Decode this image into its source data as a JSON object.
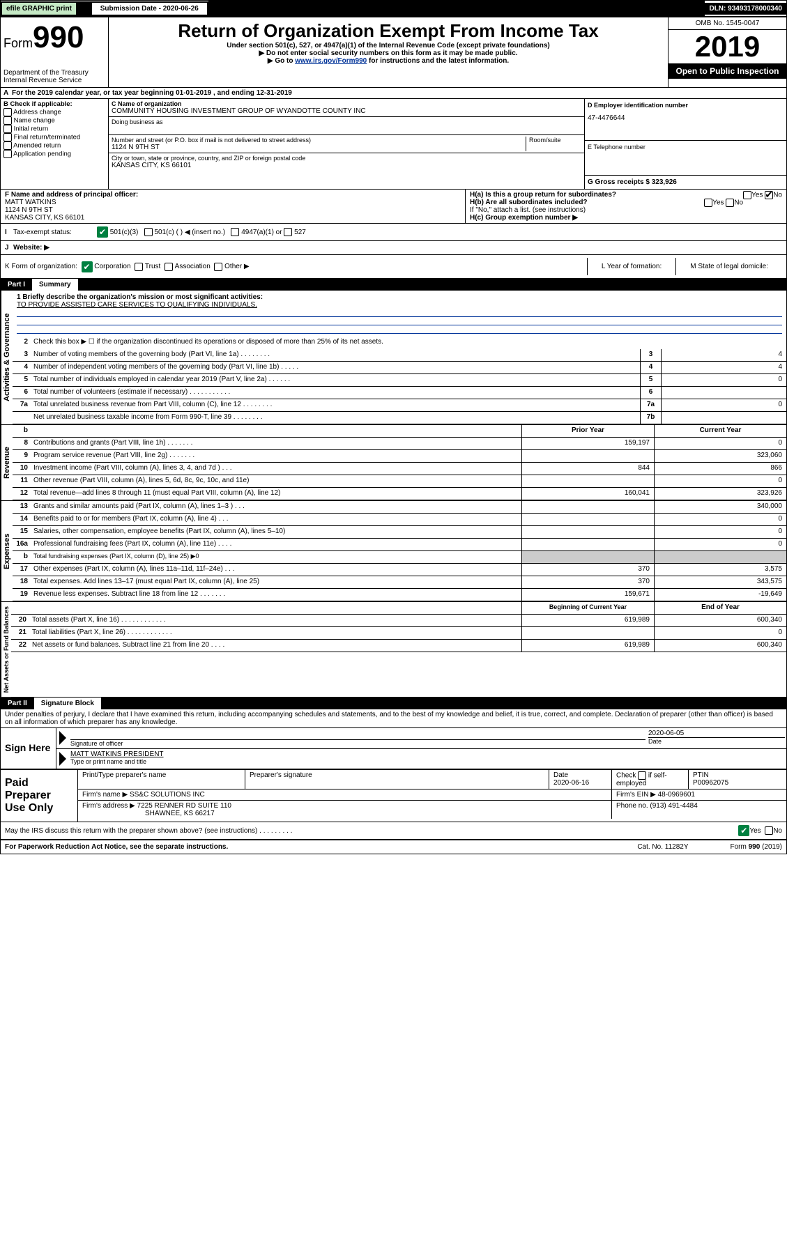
{
  "topbar": {
    "efile": "efile GRAPHIC print",
    "subdate_label": "Submission Date - 2020-06-26",
    "dln": "DLN: 93493178000340"
  },
  "header": {
    "form_prefix": "Form",
    "form_number": "990",
    "dept": "Department of the Treasury\nInternal Revenue Service",
    "title": "Return of Organization Exempt From Income Tax",
    "subtitle": "Under section 501(c), 527, or 4947(a)(1) of the Internal Revenue Code (except private foundations)",
    "note1": "▶ Do not enter social security numbers on this form as it may be made public.",
    "note2_pre": "▶ Go to ",
    "note2_link": "www.irs.gov/Form990",
    "note2_post": " for instructions and the latest information.",
    "omb": "OMB No. 1545-0047",
    "year": "2019",
    "open_public": "Open to Public Inspection"
  },
  "period": {
    "line": "For the 2019 calendar year, or tax year beginning 01-01-2019   , and ending 12-31-2019"
  },
  "checkboxes": {
    "title": "B Check if applicable:",
    "items": [
      "Address change",
      "Name change",
      "Initial return",
      "Final return/terminated",
      "Amended return",
      "Application pending"
    ]
  },
  "entity": {
    "name_label": "C Name of organization",
    "name": "COMMUNITY HOUSING INVESTMENT GROUP OF WYANDOTTE COUNTY INC",
    "dba_label": "Doing business as",
    "addr_label": "Number and street (or P.O. box if mail is not delivered to street address)",
    "room_label": "Room/suite",
    "addr": "1124 N 9TH ST",
    "city_label": "City or town, state or province, country, and ZIP or foreign postal code",
    "city": "KANSAS CITY, KS  66101"
  },
  "ein_block": {
    "d_label": "D Employer identification number",
    "ein": "47-4476644",
    "e_label": "E Telephone number",
    "g_label": "G Gross receipts $ 323,926"
  },
  "officer": {
    "f_label": "F  Name and address of principal officer:",
    "name": "MATT WATKINS",
    "addr1": "1124 N 9TH ST",
    "addr2": "KANSAS CITY, KS  66101"
  },
  "group": {
    "ha": "H(a)  Is this a group return for subordinates?",
    "hb": "H(b)  Are all subordinates included?",
    "hb_note": "If \"No,\" attach a list. (see instructions)",
    "hc": "H(c)  Group exemption number ▶",
    "yes": "Yes",
    "no": "No"
  },
  "tax_status": {
    "label": "Tax-exempt status:",
    "opts": [
      "501(c)(3)",
      "501(c) (  ) ◀ (insert no.)",
      "4947(a)(1) or",
      "527"
    ]
  },
  "website": {
    "label": "Website: ▶"
  },
  "form_of_org": {
    "k": "K Form of organization:",
    "opts": [
      "Corporation",
      "Trust",
      "Association",
      "Other ▶"
    ],
    "l": "L Year of formation:",
    "m": "M State of legal domicile:"
  },
  "part1": {
    "label": "Part I",
    "title": "Summary",
    "q1_label": "1  Briefly describe the organization's mission or most significant activities:",
    "q1_text": "TO PROVIDE ASSISTED CARE SERVICES TO QUALIFYING INDIVIDUALS.",
    "q2": "Check this box ▶ ☐  if the organization discontinued its operations or disposed of more than 25% of its net assets.",
    "lines_ag": [
      {
        "n": "3",
        "t": "Number of voting members of the governing body (Part VI, line 1a)  .   .   .   .   .   .   .   .",
        "box": "3",
        "v": "4"
      },
      {
        "n": "4",
        "t": "Number of independent voting members of the governing body (Part VI, line 1b)  .   .   .   .   .",
        "box": "4",
        "v": "4"
      },
      {
        "n": "5",
        "t": "Total number of individuals employed in calendar year 2019 (Part V, line 2a)  .   .   .   .   .   .",
        "box": "5",
        "v": "0"
      },
      {
        "n": "6",
        "t": "Total number of volunteers (estimate if necessary)  .   .   .   .   .   .   .   .   .   .   .",
        "box": "6",
        "v": ""
      },
      {
        "n": "7a",
        "t": "Total unrelated business revenue from Part VIII, column (C), line 12  .   .   .   .   .   .   .   .",
        "box": "7a",
        "v": "0"
      },
      {
        "n": "",
        "t": "Net unrelated business taxable income from Form 990-T, line 39  .   .   .   .   .   .   .   .",
        "box": "7b",
        "v": ""
      }
    ],
    "prior": "Prior Year",
    "current": "Current Year",
    "revenue": [
      {
        "n": "8",
        "t": "Contributions and grants (Part VIII, line 1h)  .   .   .   .   .   .   .",
        "p": "159,197",
        "c": "0"
      },
      {
        "n": "9",
        "t": "Program service revenue (Part VIII, line 2g)  .   .   .   .   .   .   .",
        "p": "",
        "c": "323,060"
      },
      {
        "n": "10",
        "t": "Investment income (Part VIII, column (A), lines 3, 4, and 7d )  .   .   .",
        "p": "844",
        "c": "866"
      },
      {
        "n": "11",
        "t": "Other revenue (Part VIII, column (A), lines 5, 6d, 8c, 9c, 10c, and 11e)",
        "p": "",
        "c": "0"
      },
      {
        "n": "12",
        "t": "Total revenue—add lines 8 through 11 (must equal Part VIII, column (A), line 12)",
        "p": "160,041",
        "c": "323,926"
      }
    ],
    "expenses": [
      {
        "n": "13",
        "t": "Grants and similar amounts paid (Part IX, column (A), lines 1–3 )  .   .   .",
        "p": "",
        "c": "340,000"
      },
      {
        "n": "14",
        "t": "Benefits paid to or for members (Part IX, column (A), line 4)  .   .   .",
        "p": "",
        "c": "0"
      },
      {
        "n": "15",
        "t": "Salaries, other compensation, employee benefits (Part IX, column (A), lines 5–10)",
        "p": "",
        "c": "0"
      },
      {
        "n": "16a",
        "t": "Professional fundraising fees (Part IX, column (A), line 11e)  .   .   .   .",
        "p": "",
        "c": "0"
      },
      {
        "n": "b",
        "t": "Total fundraising expenses (Part IX, column (D), line 25) ▶0",
        "p": "",
        "c": "",
        "nocols": true
      },
      {
        "n": "17",
        "t": "Other expenses (Part IX, column (A), lines 11a–11d, 11f–24e)  .   .   .",
        "p": "370",
        "c": "3,575"
      },
      {
        "n": "18",
        "t": "Total expenses. Add lines 13–17 (must equal Part IX, column (A), line 25)",
        "p": "370",
        "c": "343,575"
      },
      {
        "n": "19",
        "t": "Revenue less expenses. Subtract line 18 from line 12  .   .   .   .   .   .   .",
        "p": "159,671",
        "c": "-19,649"
      }
    ],
    "boy": "Beginning of Current Year",
    "eoy": "End of Year",
    "netassets": [
      {
        "n": "20",
        "t": "Total assets (Part X, line 16)  .   .   .   .   .   .   .   .   .   .   .   .",
        "p": "619,989",
        "c": "600,340"
      },
      {
        "n": "21",
        "t": "Total liabilities (Part X, line 26)  .   .   .   .   .   .   .   .   .   .   .   .",
        "p": "",
        "c": "0"
      },
      {
        "n": "22",
        "t": "Net assets or fund balances. Subtract line 21 from line 20  .   .   .   .",
        "p": "619,989",
        "c": "600,340"
      }
    ]
  },
  "tabs": {
    "ag": "Activities & Governance",
    "rev": "Revenue",
    "exp": "Expenses",
    "na": "Net Assets or Fund Balances"
  },
  "part2": {
    "label": "Part II",
    "title": "Signature Block",
    "decl": "Under penalties of perjury, I declare that I have examined this return, including accompanying schedules and statements, and to the best of my knowledge and belief, it is true, correct, and complete. Declaration of preparer (other than officer) is based on all information of which preparer has any knowledge."
  },
  "sign": {
    "here": "Sign Here",
    "sig_officer": "Signature of officer",
    "date": "2020-06-05",
    "date_label": "Date",
    "name_title": "MATT WATKINS PRESIDENT",
    "type_print": "Type or print name and title"
  },
  "paid": {
    "label": "Paid Preparer Use Only",
    "h1": "Print/Type preparer's name",
    "h2": "Preparer's signature",
    "h3": "Date",
    "date": "2020-06-16",
    "h4_pre": "Check",
    "h4_post": "if self-employed",
    "h5": "PTIN",
    "ptin": "P00962075",
    "firm_name_label": "Firm's name    ▶",
    "firm_name": "SS&C SOLUTIONS INC",
    "firm_ein_label": "Firm's EIN ▶",
    "firm_ein": "48-0969601",
    "firm_addr_label": "Firm's address ▶",
    "firm_addr1": "7225 RENNER RD SUITE 110",
    "firm_addr2": "SHAWNEE, KS  66217",
    "phone_label": "Phone no.",
    "phone": "(913) 491-4484"
  },
  "discuss": {
    "q": "May the IRS discuss this return with the preparer shown above? (see instructions)  .   .   .   .   .   .   .   .   .",
    "yes": "Yes",
    "no": "No"
  },
  "footer": {
    "left": "For Paperwork Reduction Act Notice, see the separate instructions.",
    "mid": "Cat. No. 11282Y",
    "right": "Form 990 (2019)"
  }
}
